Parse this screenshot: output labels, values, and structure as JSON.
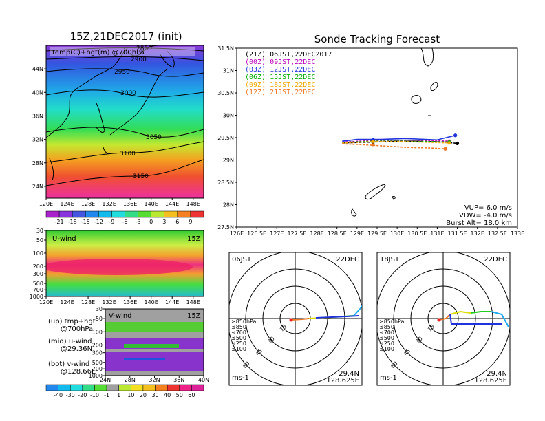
{
  "colors": {
    "track_00z": "#bb00bb",
    "track_03z": "#2233dd",
    "track_06z": "#00aa00",
    "track_09z": "#eeaa00",
    "track_12z": "#ee7722",
    "track_21z": "#000000",
    "land": "#000000"
  },
  "left": {
    "title": "15Z,21DEC2017 (init)",
    "map": {
      "label": "temp(C)+hgt(m) @700hPa",
      "xticks": [
        "120E",
        "124E",
        "128E",
        "132E",
        "136E",
        "140E",
        "144E",
        "148E"
      ],
      "yticks": [
        "44N",
        "40N",
        "36N",
        "32N",
        "28N",
        "24N"
      ],
      "contours": [
        "2850",
        "2900",
        "2950",
        "3000",
        "3050",
        "3100",
        "3150"
      ]
    },
    "cbar1": {
      "ticks": [
        "-21",
        "-18",
        "-15",
        "-12",
        "-9",
        "-6",
        "-3",
        "0",
        "3",
        "6",
        "9"
      ]
    },
    "uwind": {
      "label": "U-wind",
      "time": "15Z",
      "yticks": [
        "30",
        "50",
        "100",
        "200",
        "300",
        "500",
        "700",
        "1000"
      ],
      "xticks": [
        "120E",
        "124E",
        "128E",
        "132E",
        "136E",
        "140E",
        "144E",
        "148E"
      ]
    },
    "vwind": {
      "label": "V-wind",
      "time": "15Z",
      "yticks": [
        "30",
        "50",
        "100",
        "200",
        "300",
        "500",
        "700",
        "1000"
      ],
      "xticks": [
        "24N",
        "28N",
        "32N",
        "36N",
        "40N"
      ]
    },
    "legend": {
      "l1": "(up) tmp+hgt",
      "l2": "@700hPa",
      "l3": "(mid) u-wind",
      "l4": "@29.36N",
      "l5": "(bot) v-wind",
      "l6": "@128.66E"
    },
    "cbar2": {
      "ticks": [
        "-40",
        "-30",
        "-20",
        "-10",
        "-1",
        "1",
        "10",
        "20",
        "30",
        "40",
        "50",
        "60"
      ]
    }
  },
  "right": {
    "title": "Sonde Tracking Forecast",
    "legend": [
      {
        "text": "(21Z) 06JST,22DEC2017",
        "color": "#000000"
      },
      {
        "text": "(00Z) 09JST,22DEC",
        "color": "#bb00bb"
      },
      {
        "text": "(03Z) 12JST,22DEC",
        "color": "#2233dd"
      },
      {
        "text": "(06Z) 15JST,22DEC",
        "color": "#00aa00"
      },
      {
        "text": "(09Z) 18JST,22DEC",
        "color": "#eeaa00"
      },
      {
        "text": "(12Z) 21JST,22DEC",
        "color": "#ee7722"
      }
    ],
    "params": {
      "vup": "VUP=  6.0  m/s",
      "vdw": "VDW= -4.0  m/s",
      "burst": "Burst Alt= 18.0  km"
    },
    "yticks": [
      "31.5N",
      "31N",
      "30.5N",
      "30N",
      "29.5N",
      "29N",
      "28.5N",
      "28N",
      "27.5N"
    ],
    "xticks": [
      "126E",
      "126.5E",
      "127E",
      "127.5E",
      "128E",
      "128.5E",
      "129E",
      "129.5E",
      "130E",
      "130.5E",
      "131E",
      "131.5E",
      "132E",
      "132.5E",
      "133E"
    ]
  },
  "chart_data": [
    {
      "type": "heatmap",
      "title": "15Z,21DEC2017 (init)",
      "label": "temp(C)+hgt(m) @700hPa",
      "x": "longitude 120E-150E",
      "y": "latitude 22N-48N",
      "xlim": [
        120,
        150
      ],
      "ylim": [
        22,
        48
      ],
      "contour_levels": [
        2850,
        2900,
        2950,
        3000,
        3050,
        3100,
        3150
      ],
      "color_levels": [
        -21,
        -18,
        -15,
        -12,
        -9,
        -6,
        -3,
        0,
        3,
        6,
        9
      ]
    },
    {
      "type": "heatmap",
      "label": "U-wind",
      "time": "15Z",
      "x": "longitude 120E-150E",
      "y": "pressure (hPa)",
      "ylim": [
        1000,
        30
      ],
      "xlim": [
        120,
        150
      ]
    },
    {
      "type": "heatmap",
      "label": "V-wind",
      "time": "15Z",
      "x": "latitude 24N-40N",
      "y": "pressure (hPa)",
      "ylim": [
        1000,
        30
      ],
      "xlim": [
        24,
        40
      ],
      "color_levels": [
        -40,
        -30,
        -20,
        -10,
        -1,
        1,
        10,
        20,
        30,
        40,
        50,
        60
      ]
    },
    {
      "type": "line",
      "title": "Sonde Tracking Forecast",
      "xlabel": "",
      "ylabel": "",
      "xlim": [
        126,
        133
      ],
      "ylim": [
        27.5,
        31.5
      ],
      "series": [
        {
          "name": "(21Z) 06JST,22DEC2017",
          "x": [
            128.63,
            129.4,
            130.0,
            130.6,
            131.15,
            131.5
          ],
          "y": [
            29.38,
            29.4,
            29.42,
            29.42,
            29.4,
            29.37
          ]
        },
        {
          "name": "(00Z) 09JST,22DEC",
          "x": [
            128.63,
            129.4,
            130.1,
            130.7,
            131.3
          ],
          "y": [
            29.4,
            29.44,
            29.43,
            29.44,
            29.42
          ]
        },
        {
          "name": "(03Z) 12JST,22DEC",
          "x": [
            128.63,
            129.0,
            129.6,
            130.2,
            131.0,
            131.45
          ],
          "y": [
            29.42,
            29.46,
            29.46,
            29.48,
            29.45,
            29.55
          ]
        },
        {
          "name": "(06Z) 15JST,22DEC",
          "x": [
            128.63,
            129.4,
            130.2,
            131.3
          ],
          "y": [
            29.39,
            29.42,
            29.42,
            29.4
          ]
        },
        {
          "name": "(09Z) 18JST,22DEC",
          "x": [
            128.63,
            129.4,
            130.2,
            131.3
          ],
          "y": [
            29.38,
            29.41,
            29.41,
            29.38
          ]
        },
        {
          "name": "(12Z) 21JST,22DEC",
          "x": [
            128.63,
            129.2,
            129.7,
            130.3,
            130.8,
            131.2
          ],
          "y": [
            29.36,
            29.34,
            29.31,
            29.28,
            29.27,
            29.25
          ]
        }
      ]
    },
    {
      "type": "line",
      "label": "hodograph",
      "time": "06JST",
      "date": "22DEC",
      "lat": "29.4N",
      "lon": "128.625E",
      "unit": "ms-1",
      "ring_labels": [
        "15",
        "30",
        "45",
        "60"
      ],
      "levels": [
        "≥850hPa",
        "≤850",
        "≤700",
        "≤500",
        "≤250",
        "≤100"
      ]
    },
    {
      "type": "line",
      "label": "hodograph",
      "time": "18JST",
      "date": "22DEC",
      "lat": "29.4N",
      "lon": "128.625E",
      "unit": "ms-1",
      "ring_labels": [
        "15",
        "30",
        "45",
        "60"
      ],
      "levels": [
        "≥850hPa",
        "≤850",
        "≤700",
        "≤500",
        "≤250",
        "≤100"
      ]
    }
  ],
  "hodo1": {
    "time": "06JST",
    "date": "22DEC",
    "lat": "29.4N",
    "lon": "128.625E",
    "unit": "ms-1",
    "rings": [
      "15",
      "30",
      "45",
      "60"
    ],
    "levels": [
      "≥850hPa",
      "≤850",
      "≤700",
      "≤500",
      "≤250",
      "≤100"
    ]
  },
  "hodo2": {
    "time": "18JST",
    "date": "22DEC",
    "lat": "29.4N",
    "lon": "128.625E",
    "unit": "ms-1",
    "rings": [
      "15",
      "30",
      "45",
      "60"
    ],
    "levels": [
      "≥850hPa",
      "≤850",
      "≤700",
      "≤500",
      "≤250",
      "≤100"
    ]
  }
}
